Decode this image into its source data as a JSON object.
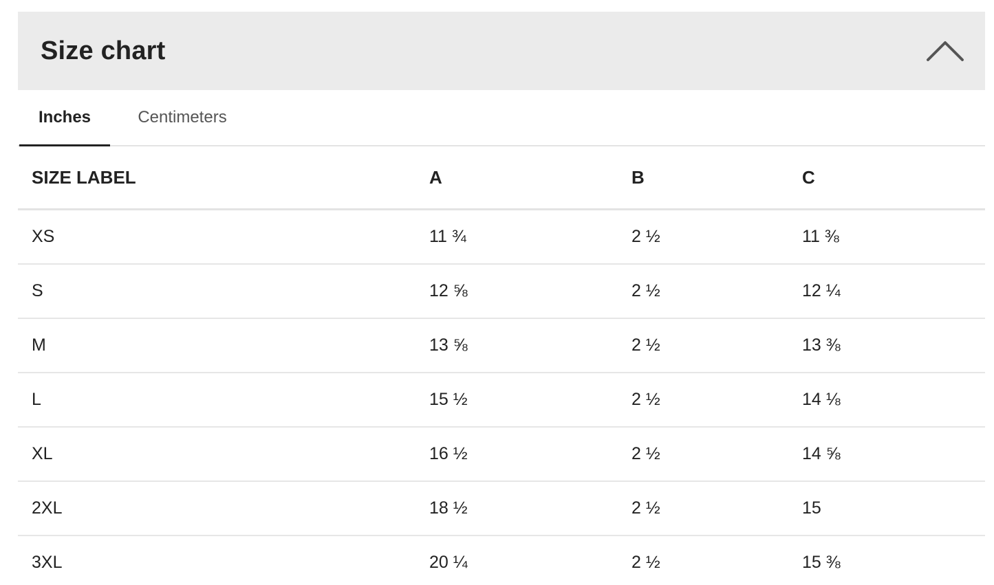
{
  "header": {
    "title": "Size chart",
    "collapse_icon": "chevron-up-icon",
    "icon_color": "#555555",
    "background": "#ebebeb"
  },
  "tabs": [
    {
      "label": "Inches",
      "active": true
    },
    {
      "label": "Centimeters",
      "active": false
    }
  ],
  "table": {
    "headers": [
      "SIZE LABEL",
      "A",
      "B",
      "C"
    ],
    "rows": [
      [
        "XS",
        "11 ¾",
        "2 ½",
        "11 ⅜"
      ],
      [
        "S",
        "12 ⅝",
        "2 ½",
        "12 ¼"
      ],
      [
        "M",
        "13 ⅝",
        "2 ½",
        "13 ⅜"
      ],
      [
        "L",
        "15 ½",
        "2 ½",
        "14 ⅛"
      ],
      [
        "XL",
        "16 ½",
        "2 ½",
        "14 ⅝"
      ],
      [
        "2XL",
        "18 ½",
        "2 ½",
        "15"
      ],
      [
        "3XL",
        "20 ¼",
        "2 ½",
        "15 ⅜"
      ]
    ]
  }
}
